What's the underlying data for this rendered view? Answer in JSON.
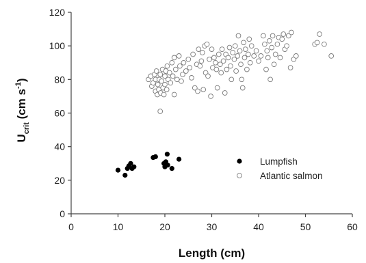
{
  "chart_data": {
    "type": "scatter",
    "xlabel": "Length (cm)",
    "ylabel": {
      "main": "U",
      "sub": "crit",
      "unit_open": " (cm s",
      "unit_sup": "-1",
      "unit_close": ")"
    },
    "xlim": [
      0,
      60
    ],
    "ylim": [
      0,
      120
    ],
    "xticks": [
      0,
      10,
      20,
      30,
      40,
      50,
      60
    ],
    "yticks": [
      0,
      20,
      40,
      60,
      80,
      100,
      120
    ],
    "grid": false,
    "legend_position": "center-right",
    "colors": {
      "lumpfish": "#000000",
      "salmon_edge": "#7a7a7a",
      "axis": "#444444"
    },
    "series": [
      {
        "name": "Lumpfish",
        "marker": "filled-circle",
        "points": [
          [
            10,
            26
          ],
          [
            11.5,
            23
          ],
          [
            12,
            27
          ],
          [
            12.3,
            28.5
          ],
          [
            12.7,
            30
          ],
          [
            13,
            27
          ],
          [
            13.4,
            28
          ],
          [
            17.5,
            33.5
          ],
          [
            18,
            34
          ],
          [
            19.8,
            30
          ],
          [
            20,
            28
          ],
          [
            20.2,
            31
          ],
          [
            20.5,
            35.5
          ],
          [
            20.6,
            29
          ],
          [
            21.5,
            27
          ],
          [
            23,
            32.5
          ]
        ]
      },
      {
        "name": "Atlantic salmon",
        "marker": "open-circle",
        "points": [
          [
            16.5,
            80
          ],
          [
            17,
            82
          ],
          [
            17.2,
            76
          ],
          [
            17.5,
            78
          ],
          [
            17.8,
            83
          ],
          [
            18,
            80
          ],
          [
            18,
            73
          ],
          [
            18.2,
            85
          ],
          [
            18.4,
            71
          ],
          [
            18.5,
            77
          ],
          [
            18.7,
            74
          ],
          [
            18.8,
            80
          ],
          [
            19,
            61
          ],
          [
            19,
            83
          ],
          [
            19.1,
            72
          ],
          [
            19.3,
            79
          ],
          [
            19.5,
            86
          ],
          [
            19.6,
            75
          ],
          [
            19.8,
            71
          ],
          [
            20,
            82
          ],
          [
            20,
            77
          ],
          [
            20.2,
            85
          ],
          [
            20.4,
            74
          ],
          [
            20.5,
            88
          ],
          [
            20.7,
            80
          ],
          [
            21,
            84
          ],
          [
            21.2,
            78
          ],
          [
            21.5,
            90
          ],
          [
            21.7,
            82
          ],
          [
            22,
            93
          ],
          [
            22,
            71
          ],
          [
            22.3,
            86
          ],
          [
            22.6,
            80
          ],
          [
            23,
            94
          ],
          [
            23.2,
            88
          ],
          [
            23.5,
            79
          ],
          [
            23.8,
            83
          ],
          [
            24,
            90
          ],
          [
            24.5,
            85
          ],
          [
            25,
            92
          ],
          [
            25.3,
            87
          ],
          [
            25.7,
            81
          ],
          [
            26,
            95
          ],
          [
            26.4,
            75
          ],
          [
            26.8,
            89
          ],
          [
            27,
            73
          ],
          [
            27.2,
            98
          ],
          [
            27.5,
            88
          ],
          [
            27.8,
            91
          ],
          [
            28,
            96
          ],
          [
            28.2,
            74
          ],
          [
            28.5,
            100
          ],
          [
            28.7,
            84
          ],
          [
            29,
            101
          ],
          [
            29.2,
            82
          ],
          [
            29.5,
            92
          ],
          [
            29.8,
            70
          ],
          [
            30,
            98
          ],
          [
            30.2,
            87
          ],
          [
            30.5,
            93
          ],
          [
            30.8,
            90
          ],
          [
            31,
            86
          ],
          [
            31.2,
            75
          ],
          [
            31.5,
            95
          ],
          [
            31.8,
            89
          ],
          [
            32,
            84
          ],
          [
            32.2,
            98
          ],
          [
            32.5,
            91
          ],
          [
            32.8,
            72
          ],
          [
            33,
            95
          ],
          [
            33.2,
            86
          ],
          [
            33.5,
            93
          ],
          [
            33.8,
            99
          ],
          [
            34,
            88
          ],
          [
            34.2,
            80
          ],
          [
            34.5,
            96
          ],
          [
            34.8,
            92
          ],
          [
            35,
            100
          ],
          [
            35.2,
            85
          ],
          [
            35.5,
            94
          ],
          [
            35.7,
            106
          ],
          [
            36,
            97
          ],
          [
            36.2,
            89
          ],
          [
            36.4,
            80
          ],
          [
            36.6,
            75
          ],
          [
            36.8,
            102
          ],
          [
            37,
            93
          ],
          [
            37.2,
            98
          ],
          [
            37.5,
            86
          ],
          [
            37.8,
            95
          ],
          [
            38,
            104
          ],
          [
            38.2,
            90
          ],
          [
            38.5,
            100
          ],
          [
            39,
            94
          ],
          [
            39.5,
            97
          ],
          [
            40,
            91
          ],
          [
            40.5,
            94
          ],
          [
            41,
            106
          ],
          [
            41.3,
            101
          ],
          [
            41.6,
            86
          ],
          [
            41.8,
            97
          ],
          [
            42,
            93
          ],
          [
            42.3,
            103
          ],
          [
            42.5,
            80
          ],
          [
            42.8,
            99
          ],
          [
            43,
            106
          ],
          [
            43.3,
            89
          ],
          [
            43.6,
            95
          ],
          [
            44,
            101
          ],
          [
            44.3,
            105
          ],
          [
            44.6,
            93
          ],
          [
            45,
            104
          ],
          [
            45.3,
            107
          ],
          [
            45.6,
            98
          ],
          [
            46,
            100
          ],
          [
            46.4,
            106
          ],
          [
            46.8,
            87
          ],
          [
            47,
            108
          ],
          [
            47.5,
            92
          ],
          [
            48,
            94
          ],
          [
            52,
            101
          ],
          [
            52.5,
            102
          ],
          [
            53,
            107
          ],
          [
            54,
            101
          ],
          [
            55.5,
            94
          ]
        ]
      }
    ]
  }
}
